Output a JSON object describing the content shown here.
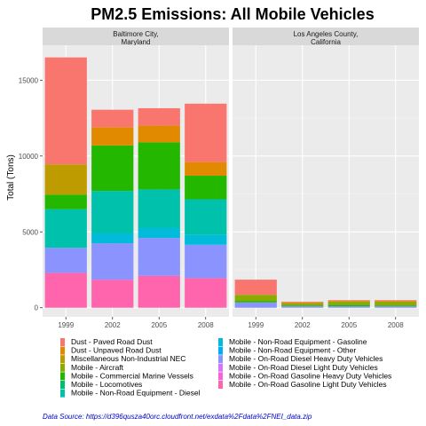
{
  "chart_data": {
    "type": "bar",
    "stacked": true,
    "title": "PM2.5 Emissions: All  Mobile Vehicles",
    "ylabel": "Total (Tons)",
    "xlabel": "",
    "caption": "Data Source: https://d396qusza40orc.cloudfront.net/exdata%2Fdata%2FNEI_data.zip",
    "categories": [
      "1999",
      "2002",
      "2005",
      "2008"
    ],
    "yticks": [
      0,
      5000,
      10000,
      15000
    ],
    "ylim": [
      -600,
      17300
    ],
    "grid": true,
    "legend_position": "bottom",
    "facets": [
      {
        "strip": [
          "Baltimore City,",
          "Maryland"
        ],
        "series_values": {
          "Mobile - On-Road Gasoline Light Duty Vehicles": [
            2300,
            1850,
            2100,
            1950
          ],
          "Mobile - On-Road Gasoline Heavy Duty Vehicles": [
            0,
            0,
            0,
            0
          ],
          "Mobile - On-Road Diesel Light Duty Vehicles": [
            0,
            0,
            0,
            0
          ],
          "Mobile - On-Road Diesel Heavy Duty Vehicles": [
            1650,
            2400,
            2500,
            2200
          ],
          "Mobile - Non-Road Equipment - Other": [
            0,
            0,
            0,
            0
          ],
          "Mobile - Non-Road Equipment - Gasoline": [
            0,
            650,
            650,
            650
          ],
          "Mobile - Non-Road Equipment - Diesel": [
            2550,
            2800,
            2550,
            2350
          ],
          "Mobile - Locomotives": [
            0,
            0,
            0,
            0
          ],
          "Mobile - Commercial Marine Vessels": [
            950,
            3000,
            3100,
            1550
          ],
          "Mobile - Aircraft": [
            0,
            0,
            0,
            0
          ],
          "Miscellaneous Non-Industrial NEC": [
            2000,
            0,
            0,
            0
          ],
          "Dust - Unpaved Road Dust": [
            0,
            1200,
            1100,
            900
          ],
          "Dust - Paved Road Dust": [
            7050,
            1150,
            1150,
            3850
          ]
        }
      },
      {
        "strip": [
          "Los Angeles County,",
          "California"
        ],
        "series_values": {
          "Mobile - On-Road Gasoline Light Duty Vehicles": [
            0,
            0,
            0,
            0
          ],
          "Mobile - On-Road Gasoline Heavy Duty Vehicles": [
            0,
            0,
            0,
            0
          ],
          "Mobile - On-Road Diesel Light Duty Vehicles": [
            0,
            0,
            0,
            0
          ],
          "Mobile - On-Road Diesel Heavy Duty Vehicles": [
            350,
            100,
            100,
            100
          ],
          "Mobile - Non-Road Equipment - Other": [
            0,
            0,
            0,
            0
          ],
          "Mobile - Non-Road Equipment - Gasoline": [
            0,
            0,
            0,
            0
          ],
          "Mobile - Non-Road Equipment - Diesel": [
            0,
            0,
            0,
            0
          ],
          "Mobile - Locomotives": [
            0,
            0,
            0,
            0
          ],
          "Mobile - Commercial Marine Vessels": [
            100,
            50,
            100,
            50
          ],
          "Mobile - Aircraft": [
            400,
            150,
            200,
            250
          ],
          "Miscellaneous Non-Industrial NEC": [
            0,
            0,
            0,
            0
          ],
          "Dust - Unpaved Road Dust": [
            0,
            50,
            50,
            50
          ],
          "Dust - Paved Road Dust": [
            1000,
            50,
            50,
            50
          ]
        }
      }
    ],
    "legend": [
      {
        "name": "Dust - Paved Road Dust",
        "color": "#F8766D"
      },
      {
        "name": "Dust - Unpaved Road Dust",
        "color": "#E18A00"
      },
      {
        "name": "Miscellaneous Non-Industrial NEC",
        "color": "#BE9C00"
      },
      {
        "name": "Mobile - Aircraft",
        "color": "#8CAB00"
      },
      {
        "name": "Mobile - Commercial Marine Vessels",
        "color": "#24B700"
      },
      {
        "name": "Mobile - Locomotives",
        "color": "#00BE70"
      },
      {
        "name": "Mobile - Non-Road Equipment - Diesel",
        "color": "#00C1AB"
      },
      {
        "name": "Mobile - Non-Road Equipment - Gasoline",
        "color": "#00BBDA"
      },
      {
        "name": "Mobile - Non-Road Equipment - Other",
        "color": "#00ACFC"
      },
      {
        "name": "Mobile - On-Road Diesel Heavy Duty Vehicles",
        "color": "#8B93FF"
      },
      {
        "name": "Mobile - On-Road Diesel Light Duty Vehicles",
        "color": "#D575FE"
      },
      {
        "name": "Mobile - On-Road Gasoline Heavy Duty Vehicles",
        "color": "#F962DD"
      },
      {
        "name": "Mobile - On-Road Gasoline Light Duty Vehicles",
        "color": "#FF65AC"
      }
    ],
    "stack_order_bottom_to_top": [
      "Mobile - On-Road Gasoline Light Duty Vehicles",
      "Mobile - On-Road Gasoline Heavy Duty Vehicles",
      "Mobile - On-Road Diesel Light Duty Vehicles",
      "Mobile - On-Road Diesel Heavy Duty Vehicles",
      "Mobile - Non-Road Equipment - Other",
      "Mobile - Non-Road Equipment - Gasoline",
      "Mobile - Non-Road Equipment - Diesel",
      "Mobile - Locomotives",
      "Mobile - Commercial Marine Vessels",
      "Mobile - Aircraft",
      "Miscellaneous Non-Industrial NEC",
      "Dust - Unpaved Road Dust",
      "Dust - Paved Road Dust"
    ]
  }
}
